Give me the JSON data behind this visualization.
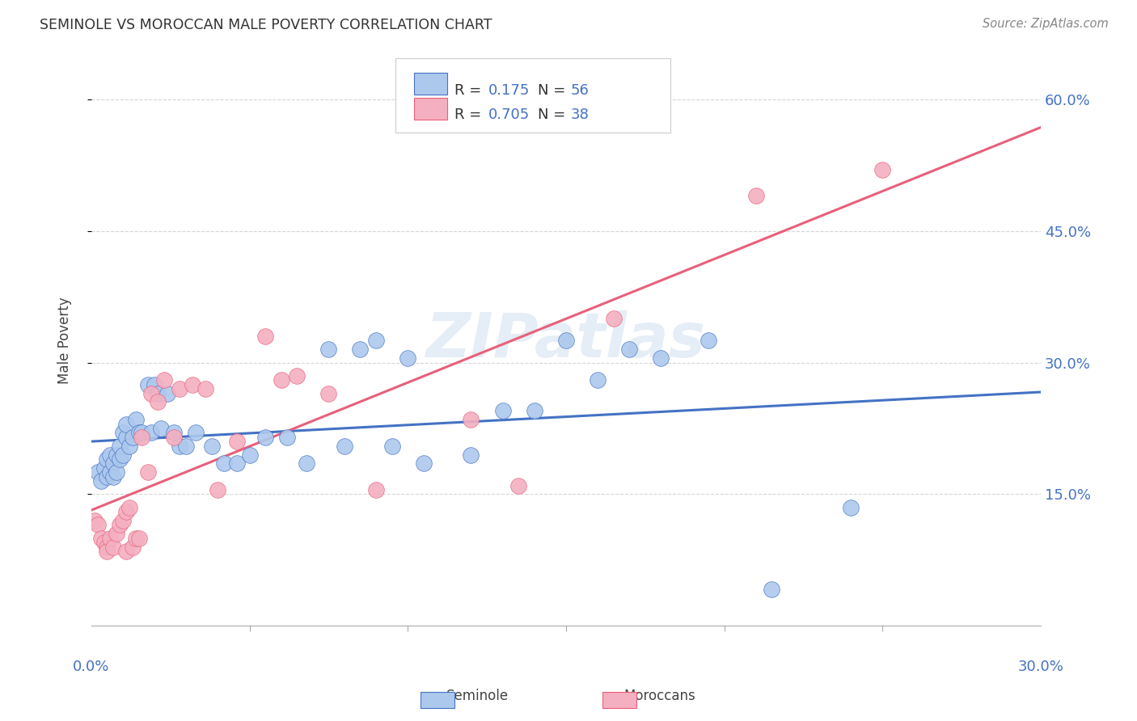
{
  "title": "SEMINOLE VS MOROCCAN MALE POVERTY CORRELATION CHART",
  "source": "Source: ZipAtlas.com",
  "ylabel": "Male Poverty",
  "ytick_labels": [
    "15.0%",
    "30.0%",
    "45.0%",
    "60.0%"
  ],
  "ytick_values": [
    0.15,
    0.3,
    0.45,
    0.6
  ],
  "xlim": [
    0.0,
    0.3
  ],
  "ylim": [
    0.0,
    0.65
  ],
  "seminole_R": "0.175",
  "seminole_N": "56",
  "moroccan_R": "0.705",
  "moroccan_N": "38",
  "seminole_color": "#adc8ed",
  "moroccan_color": "#f4afc0",
  "seminole_line_color": "#4472c4",
  "moroccan_line_color": "#e8607a",
  "label_color": "#4472c4",
  "watermark": "ZIPatlas",
  "seminole_x": [
    0.002,
    0.003,
    0.004,
    0.005,
    0.005,
    0.006,
    0.006,
    0.007,
    0.007,
    0.008,
    0.008,
    0.009,
    0.009,
    0.01,
    0.01,
    0.011,
    0.011,
    0.012,
    0.013,
    0.014,
    0.015,
    0.016,
    0.018,
    0.019,
    0.02,
    0.021,
    0.022,
    0.024,
    0.026,
    0.028,
    0.03,
    0.033,
    0.038,
    0.042,
    0.046,
    0.05,
    0.055,
    0.062,
    0.068,
    0.075,
    0.08,
    0.085,
    0.09,
    0.095,
    0.1,
    0.105,
    0.12,
    0.13,
    0.14,
    0.15,
    0.16,
    0.17,
    0.18,
    0.195,
    0.215,
    0.24
  ],
  "seminole_y": [
    0.175,
    0.165,
    0.18,
    0.19,
    0.17,
    0.175,
    0.195,
    0.185,
    0.17,
    0.195,
    0.175,
    0.19,
    0.205,
    0.22,
    0.195,
    0.215,
    0.23,
    0.205,
    0.215,
    0.235,
    0.22,
    0.22,
    0.275,
    0.22,
    0.275,
    0.265,
    0.225,
    0.265,
    0.22,
    0.205,
    0.205,
    0.22,
    0.205,
    0.185,
    0.185,
    0.195,
    0.215,
    0.215,
    0.185,
    0.315,
    0.205,
    0.315,
    0.325,
    0.205,
    0.305,
    0.185,
    0.195,
    0.245,
    0.245,
    0.325,
    0.28,
    0.315,
    0.305,
    0.325,
    0.042,
    0.135
  ],
  "moroccan_x": [
    0.001,
    0.002,
    0.003,
    0.004,
    0.005,
    0.005,
    0.006,
    0.007,
    0.008,
    0.009,
    0.01,
    0.011,
    0.011,
    0.012,
    0.013,
    0.014,
    0.015,
    0.016,
    0.018,
    0.019,
    0.021,
    0.023,
    0.026,
    0.028,
    0.032,
    0.036,
    0.04,
    0.046,
    0.055,
    0.06,
    0.065,
    0.075,
    0.09,
    0.12,
    0.135,
    0.165,
    0.21,
    0.25
  ],
  "moroccan_y": [
    0.12,
    0.115,
    0.1,
    0.095,
    0.09,
    0.085,
    0.1,
    0.09,
    0.105,
    0.115,
    0.12,
    0.13,
    0.085,
    0.135,
    0.09,
    0.1,
    0.1,
    0.215,
    0.175,
    0.265,
    0.255,
    0.28,
    0.215,
    0.27,
    0.275,
    0.27,
    0.155,
    0.21,
    0.33,
    0.28,
    0.285,
    0.265,
    0.155,
    0.235,
    0.16,
    0.35,
    0.49,
    0.52
  ],
  "background_color": "#ffffff",
  "grid_color": "#cccccc",
  "xtick_minor": [
    0.05,
    0.1,
    0.15,
    0.2,
    0.25
  ]
}
